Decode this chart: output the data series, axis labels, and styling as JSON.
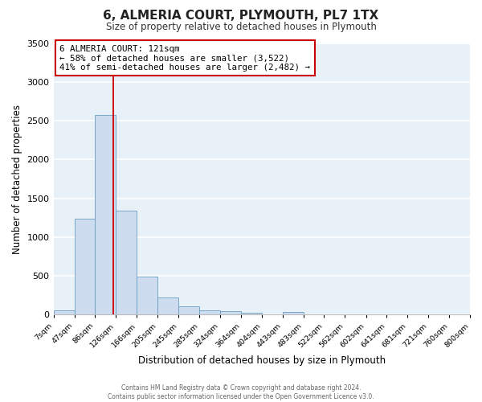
{
  "title": "6, ALMERIA COURT, PLYMOUTH, PL7 1TX",
  "subtitle": "Size of property relative to detached houses in Plymouth",
  "xlabel": "Distribution of detached houses by size in Plymouth",
  "ylabel": "Number of detached properties",
  "bar_color": "#cddcee",
  "bar_edge_color": "#6a9ec0",
  "background_color": "#e8f0f8",
  "grid_color": "#ffffff",
  "bin_edges": [
    7,
    47,
    86,
    126,
    166,
    205,
    245,
    285,
    324,
    364,
    404,
    443,
    483,
    522,
    562,
    602,
    641,
    681,
    721,
    760,
    800
  ],
  "bin_labels": [
    "7sqm",
    "47sqm",
    "86sqm",
    "126sqm",
    "166sqm",
    "205sqm",
    "245sqm",
    "285sqm",
    "324sqm",
    "364sqm",
    "404sqm",
    "443sqm",
    "483sqm",
    "522sqm",
    "562sqm",
    "602sqm",
    "641sqm",
    "681sqm",
    "721sqm",
    "760sqm",
    "800sqm"
  ],
  "bar_heights": [
    50,
    1240,
    2580,
    1340,
    490,
    220,
    110,
    50,
    40,
    20,
    5,
    30,
    0,
    0,
    0,
    0,
    0,
    0,
    0,
    0
  ],
  "ylim": [
    0,
    3500
  ],
  "yticks": [
    0,
    500,
    1000,
    1500,
    2000,
    2500,
    3000,
    3500
  ],
  "property_line_x": 121,
  "property_line_color": "#cc0000",
  "annotation_title": "6 ALMERIA COURT: 121sqm",
  "annotation_line1": "← 58% of detached houses are smaller (3,522)",
  "annotation_line2": "41% of semi-detached houses are larger (2,482) →",
  "annotation_box_color": "#ffffff",
  "annotation_box_edge_color": "#cc0000",
  "footer_line1": "Contains HM Land Registry data © Crown copyright and database right 2024.",
  "footer_line2": "Contains public sector information licensed under the Open Government Licence v3.0."
}
